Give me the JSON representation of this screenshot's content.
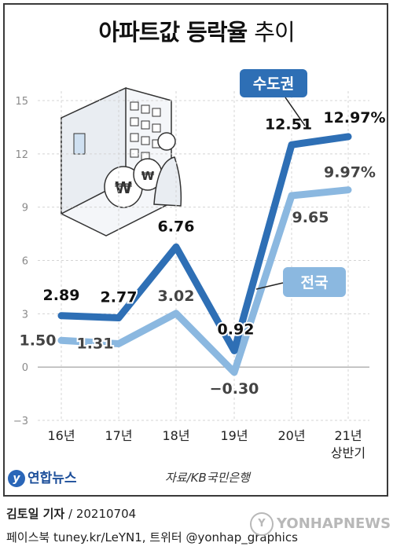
{
  "title": {
    "bold": "아파트값 등락율",
    "light": "추이"
  },
  "chart_data": {
    "type": "line",
    "categories": [
      "16년",
      "17년",
      "18년",
      "19년",
      "20년",
      "21년\n상반기"
    ],
    "ylim": [
      -3,
      15
    ],
    "yticks": [
      "15",
      "12",
      "9",
      "6",
      "3",
      "0",
      "−3"
    ],
    "grid": true,
    "series": [
      {
        "name": "수도권",
        "color": "#2e6fb5",
        "values": [
          2.89,
          2.77,
          6.76,
          0.92,
          12.51,
          12.97
        ],
        "labels": [
          "2.89",
          "2.77",
          "6.76",
          "0.92",
          "12.51",
          "12.97%"
        ]
      },
      {
        "name": "전국",
        "color": "#8bb8e0",
        "values": [
          1.5,
          1.31,
          3.02,
          -0.3,
          9.65,
          9.97
        ],
        "labels": [
          "1.50",
          "1.31",
          "3.02",
          "−0.30",
          "9.65",
          "9.97%"
        ]
      }
    ]
  },
  "footer": {
    "logo": "연합뉴스",
    "logo_mark": "y",
    "source": "자료/KB국민은행",
    "reporter_name": "김토일 기자",
    "reporter_date": "/ 20210704",
    "social": "페이스북 tuney.kr/LeYN1, 트위터 @yonhap_graphics",
    "watermark": "YONHAPNEWS",
    "watermark_mark": "Y"
  }
}
